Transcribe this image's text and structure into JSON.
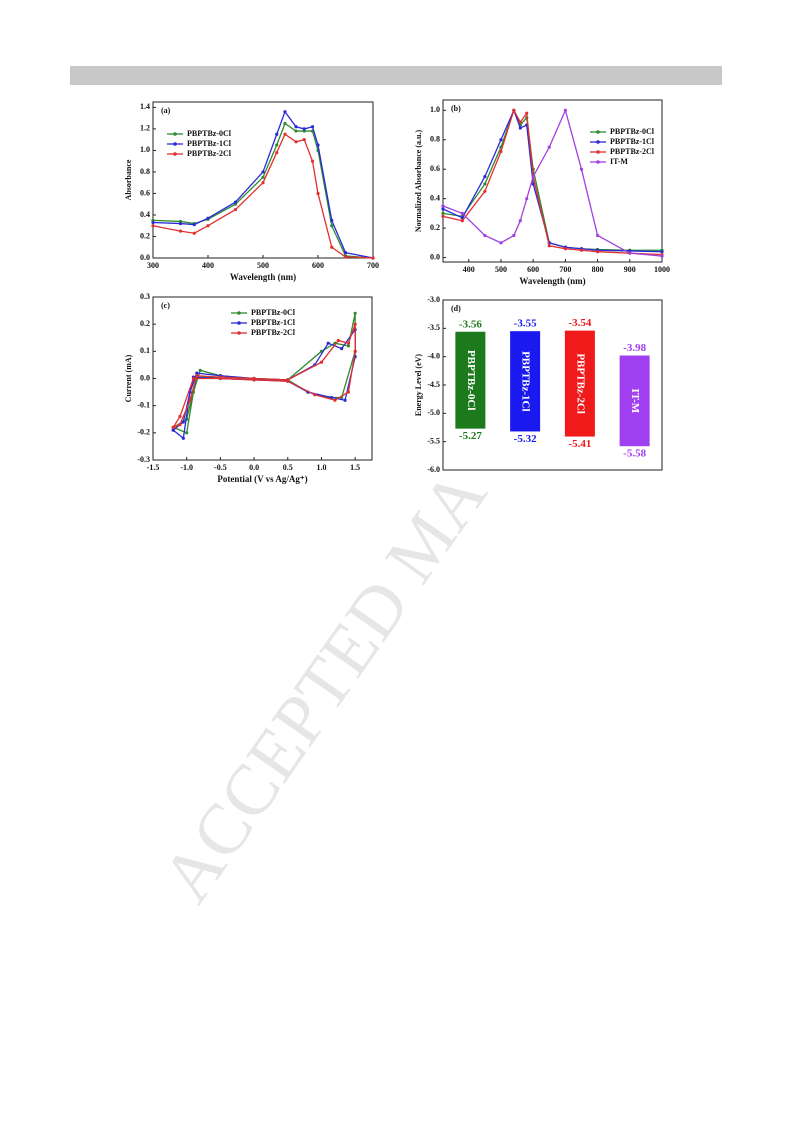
{
  "watermark": "ACCEPTED MA",
  "chart_data": [
    {
      "type": "line",
      "panel_label": "(a)",
      "x_label": "Wavelength (nm)",
      "y_label": "Absorbance",
      "xlim": [
        300,
        700
      ],
      "ylim": [
        0,
        1.45
      ],
      "xticks": [
        300,
        400,
        500,
        600,
        700
      ],
      "yticks": [
        {
          "value": 0,
          "label": "0.0"
        },
        0.2,
        0.4,
        0.6,
        0.8,
        {
          "value": 1,
          "label": "1.0"
        },
        1.2,
        1.4
      ],
      "legend": "upper left",
      "x": [
        300,
        350,
        375,
        400,
        450,
        500,
        525,
        540,
        560,
        575,
        590,
        600,
        625,
        650,
        700
      ],
      "series": [
        {
          "name": "PBPTBz-0Cl",
          "color": "#2e8b2e",
          "values": [
            0.35,
            0.34,
            0.32,
            0.36,
            0.5,
            0.75,
            1.05,
            1.25,
            1.18,
            1.18,
            1.18,
            1.0,
            0.3,
            0.02,
            0
          ]
        },
        {
          "name": "PBPTBz-1Cl",
          "color": "#2a2ad8",
          "values": [
            0.33,
            0.32,
            0.31,
            0.37,
            0.52,
            0.8,
            1.15,
            1.36,
            1.22,
            1.2,
            1.22,
            1.05,
            0.35,
            0.05,
            0
          ]
        },
        {
          "name": "PBPTBz-2Cl",
          "color": "#e03030",
          "values": [
            0.3,
            0.25,
            0.23,
            0.3,
            0.45,
            0.7,
            0.98,
            1.15,
            1.08,
            1.1,
            0.9,
            0.6,
            0.1,
            0.01,
            0
          ]
        }
      ]
    },
    {
      "type": "line",
      "panel_label": "(b)",
      "x_label": "Wavelength (nm)",
      "y_label": "Normalized Absorbance (a.u.)",
      "xlim": [
        320,
        1000
      ],
      "ylim": [
        -0.03,
        1.07
      ],
      "xticks": [
        400,
        500,
        600,
        700,
        800,
        900,
        1000
      ],
      "yticks": [
        {
          "value": 0,
          "label": "0.0"
        },
        0.2,
        0.4,
        0.6,
        0.8,
        {
          "value": 1,
          "label": "1.0"
        }
      ],
      "legend": "upper right",
      "x": [
        320,
        380,
        450,
        500,
        540,
        560,
        580,
        600,
        650,
        700,
        750,
        800,
        900,
        1000
      ],
      "series": [
        {
          "name": "PBPTBz-0Cl",
          "color": "#2e8b2e",
          "values": [
            0.3,
            0.28,
            0.5,
            0.75,
            1.0,
            0.9,
            0.95,
            0.6,
            0.1,
            0.07,
            0.06,
            0.055,
            0.05,
            0.05
          ]
        },
        {
          "name": "PBPTBz-1Cl",
          "color": "#2a2ad8",
          "values": [
            0.33,
            0.27,
            0.55,
            0.8,
            1.0,
            0.88,
            0.9,
            0.5,
            0.1,
            0.07,
            0.06,
            0.05,
            0.045,
            0.04
          ]
        },
        {
          "name": "PBPTBz-2Cl",
          "color": "#e03030",
          "values": [
            0.28,
            0.25,
            0.45,
            0.72,
            1.0,
            0.92,
            0.98,
            0.55,
            0.08,
            0.06,
            0.05,
            0.04,
            0.03,
            0.02
          ]
        },
        {
          "name": "IT-M",
          "color": "#a040e0",
          "values": [
            0.35,
            0.3,
            0.15,
            0.1,
            0.15,
            0.25,
            0.4,
            0.55,
            0.75,
            1.0,
            0.6,
            0.15,
            0.03,
            0.01
          ]
        }
      ]
    },
    {
      "type": "line",
      "panel_label": "(c)",
      "x_label": "Potential (V vs Ag/Ag⁺)",
      "y_label": "Current (mA)",
      "xlim": [
        -1.5,
        1.75
      ],
      "ylim": [
        -0.3,
        0.3
      ],
      "xticks": [
        -1.5,
        {
          "value": -1,
          "label": "-1.0"
        },
        -0.5,
        {
          "value": 0,
          "label": "0.0"
        },
        0.5,
        {
          "value": 1,
          "label": "1.0"
        },
        1.5
      ],
      "yticks": [
        -0.3,
        -0.2,
        -0.1,
        {
          "value": 0,
          "label": "0.0"
        },
        0.1,
        0.2,
        0.3
      ],
      "legend": "upper center",
      "series": [
        {
          "name": "PBPTBz-0Cl",
          "color": "#2e8b2e",
          "x": [
            -1.2,
            -1.0,
            -0.9,
            -0.8,
            -0.5,
            0,
            0.5,
            1.0,
            1.2,
            1.4,
            1.5,
            1.5,
            1.3,
            1.1,
            0.8,
            0.5,
            0,
            -0.5,
            -0.85,
            -1.0,
            -1.2
          ],
          "values": [
            -0.18,
            -0.2,
            -0.05,
            0.03,
            0.01,
            0,
            -0.005,
            0.1,
            0.13,
            0.12,
            0.24,
            0.1,
            -0.07,
            -0.07,
            -0.05,
            -0.005,
            -0.005,
            0,
            0.01,
            -0.15,
            -0.18
          ]
        },
        {
          "name": "PBPTBz-1Cl",
          "color": "#2a2ad8",
          "x": [
            -1.2,
            -1.05,
            -0.95,
            -0.85,
            -0.5,
            0,
            0.5,
            0.9,
            1.1,
            1.3,
            1.5,
            1.5,
            1.35,
            1.15,
            0.8,
            0.5,
            0,
            -0.5,
            -0.9,
            -1.05,
            -1.2
          ],
          "values": [
            -0.19,
            -0.22,
            -0.05,
            0.02,
            0.01,
            0,
            -0.005,
            0.05,
            0.13,
            0.11,
            0.18,
            0.08,
            -0.08,
            -0.07,
            -0.05,
            -0.01,
            -0.005,
            0,
            0.005,
            -0.16,
            -0.19
          ]
        },
        {
          "name": "PBPTBz-2Cl",
          "color": "#e03030",
          "x": [
            -1.2,
            -1.1,
            -0.95,
            -0.85,
            -0.5,
            0,
            0.5,
            1.0,
            1.25,
            1.4,
            1.5,
            1.5,
            1.4,
            1.2,
            0.9,
            0.5,
            0,
            -0.5,
            -0.9,
            -1.1,
            -1.2
          ],
          "values": [
            -0.18,
            -0.17,
            -0.08,
            0.01,
            0.005,
            0,
            -0.005,
            0.06,
            0.14,
            0.13,
            0.2,
            0.1,
            -0.05,
            -0.08,
            -0.06,
            -0.01,
            -0.005,
            0,
            0.0,
            -0.14,
            -0.18
          ]
        }
      ]
    },
    {
      "type": "bar",
      "panel_label": "(d)",
      "y_label": "Energy Level (eV)",
      "ylim": [
        -6.0,
        -3.0
      ],
      "yticks": [
        {
          "value": -3,
          "label": "-3.0"
        },
        -3.5,
        {
          "value": -4,
          "label": "-4.0"
        },
        -4.5,
        {
          "value": -5,
          "label": "-5.0"
        },
        -5.5,
        {
          "value": -6,
          "label": "-6.0"
        }
      ],
      "categories": [
        "PBPTBz-0Cl",
        "PBPTBz-1Cl",
        "PBPTBz-2Cl",
        "IT-M"
      ],
      "top_values": [
        -3.56,
        -3.55,
        -3.54,
        -3.98
      ],
      "bottom_values": [
        -5.27,
        -5.32,
        -5.41,
        -5.58
      ],
      "colors": [
        "#1c7a1c",
        "#1a1af0",
        "#f01a1a",
        "#a040f0"
      ]
    }
  ]
}
